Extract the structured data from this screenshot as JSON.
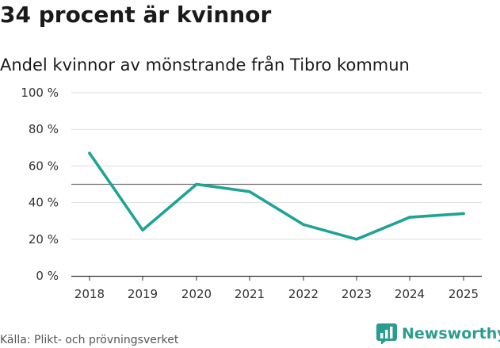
{
  "headline": "34 procent är kvinnor",
  "source": "Källa: Plikt- och prövningsverket",
  "brand": {
    "name": "Newsworthy",
    "icon": "bar-chart-icon",
    "color": "#2a9d8f"
  },
  "chart_data": {
    "type": "line",
    "title": "Andel kvinnor av mönstrande från Tibro kommun",
    "xlabel": "",
    "ylabel": "",
    "categories": [
      "2018",
      "2019",
      "2020",
      "2021",
      "2022",
      "2023",
      "2024",
      "2025"
    ],
    "series": [
      {
        "name": "Andel kvinnor",
        "values": [
          67,
          25,
          50,
          46,
          28,
          20,
          32,
          34
        ],
        "color": "#1fa395"
      }
    ],
    "ylim": [
      0,
      100
    ],
    "yticks": [
      0,
      20,
      40,
      60,
      80,
      100
    ],
    "ytick_labels": [
      "0 %",
      "20 %",
      "40 %",
      "60 %",
      "80 %",
      "100 %"
    ],
    "reference_line": 50,
    "grid": true,
    "legend": "none"
  }
}
